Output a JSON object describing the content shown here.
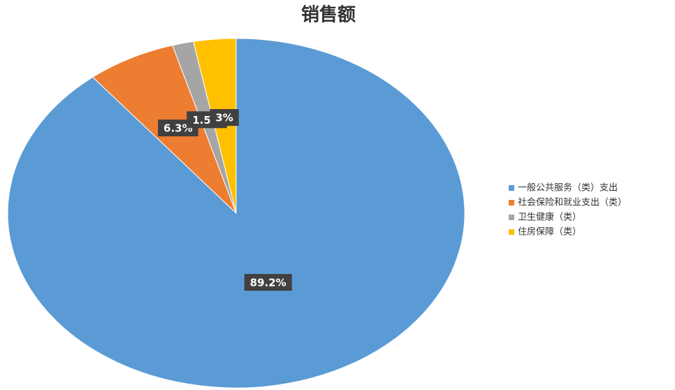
{
  "chart_data": {
    "type": "pie",
    "title": "销售额",
    "categories": [
      "一般公共服务（类）支出",
      "社会保险和就业支出（类）",
      "卫生健康（类）",
      "住房保障（类）"
    ],
    "values": [
      89.2,
      6.3,
      1.5,
      3
    ],
    "value_labels": [
      "89.2%",
      "6.3%",
      "1.5%",
      "3%"
    ],
    "colors": [
      "#5b9bd5",
      "#ed7d31",
      "#a5a5a5",
      "#ffc000"
    ],
    "legend": "right"
  }
}
